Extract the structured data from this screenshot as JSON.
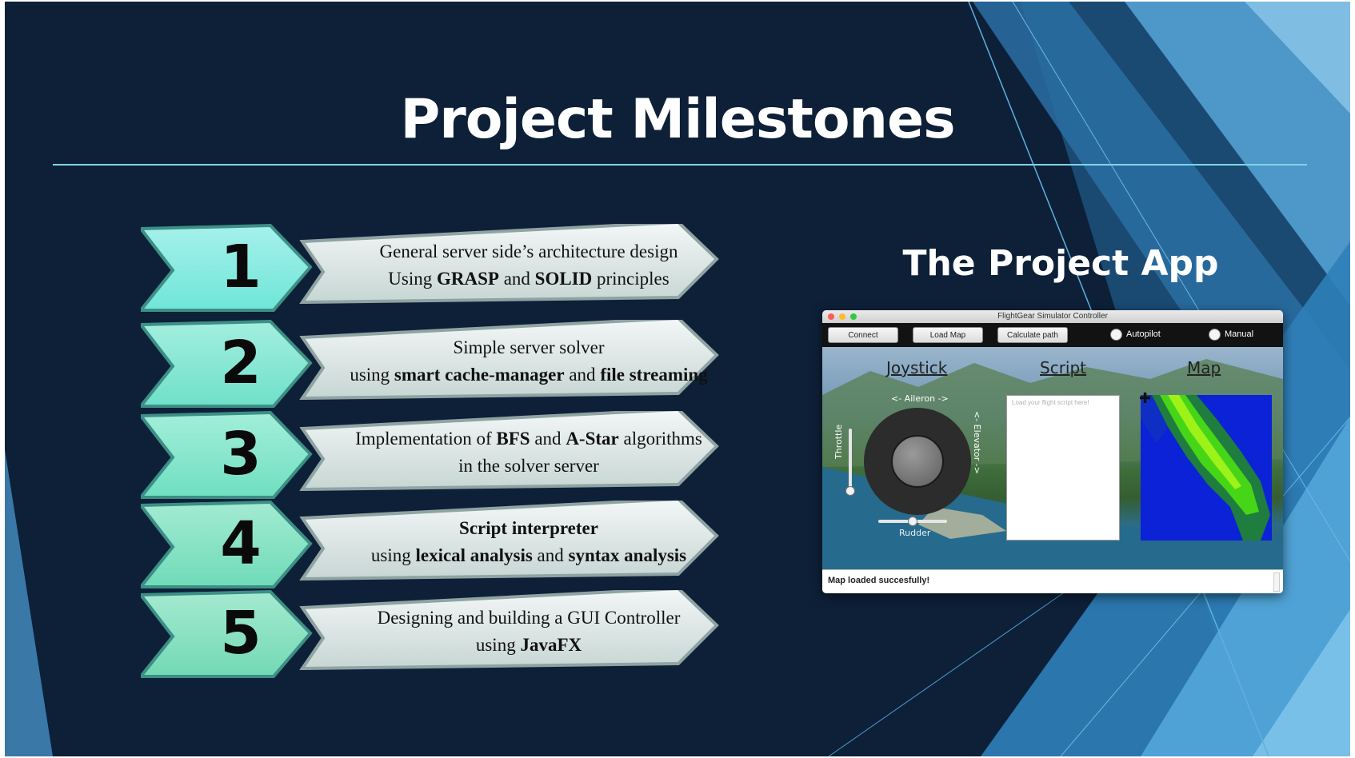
{
  "slide": {
    "title": "Project Milestones",
    "app_heading": "The Project App"
  },
  "milestones": [
    {
      "number": "1",
      "line1": [
        {
          "t": "General server side’s architecture design",
          "b": false
        }
      ],
      "line2": [
        {
          "t": "Using ",
          "b": false
        },
        {
          "t": "GRASP",
          "b": true
        },
        {
          "t": " and ",
          "b": false
        },
        {
          "t": "SOLID",
          "b": true
        },
        {
          "t": " principles",
          "b": false
        }
      ]
    },
    {
      "number": "2",
      "line1": [
        {
          "t": "Simple server solver",
          "b": false
        }
      ],
      "line2": [
        {
          "t": "using ",
          "b": false
        },
        {
          "t": "smart cache-manager",
          "b": true
        },
        {
          "t": " and ",
          "b": false
        },
        {
          "t": "file streaming",
          "b": true
        }
      ]
    },
    {
      "number": "3",
      "line1": [
        {
          "t": "Implementation of ",
          "b": false
        },
        {
          "t": "BFS",
          "b": true
        },
        {
          "t": " and ",
          "b": false
        },
        {
          "t": "A-Star",
          "b": true
        },
        {
          "t": " algorithms",
          "b": false
        }
      ],
      "line2": [
        {
          "t": "in the solver server",
          "b": false
        }
      ]
    },
    {
      "number": "4",
      "line1": [
        {
          "t": "Script interpreter",
          "b": true
        }
      ],
      "line2": [
        {
          "t": "using ",
          "b": false
        },
        {
          "t": "lexical analysis",
          "b": true
        },
        {
          "t": " and ",
          "b": false
        },
        {
          "t": "syntax analysis",
          "b": true
        }
      ]
    },
    {
      "number": "5",
      "line1": [
        {
          "t": "Designing and building a GUI Controller",
          "b": false
        }
      ],
      "line2": [
        {
          "t": "using ",
          "b": false
        },
        {
          "t": "JavaFX",
          "b": true
        }
      ]
    }
  ],
  "app": {
    "window_title": "FlightGear Simulator Controller",
    "buttons": {
      "connect": "Connect",
      "load_map": "Load Map",
      "calculate_path": "Calculate path"
    },
    "radios": {
      "autopilot": "Autopilot",
      "manual": "Manual"
    },
    "sections": {
      "joystick": "Joystick",
      "script": "Script",
      "map": "Map"
    },
    "joystick": {
      "aileron": "<- Aileron ->",
      "elevator": "<- Elevator ->",
      "throttle": "Throttle",
      "rudder": "Rudder"
    },
    "script_placeholder": "Load your flight script here!",
    "status": "Map loaded succesfully!"
  }
}
